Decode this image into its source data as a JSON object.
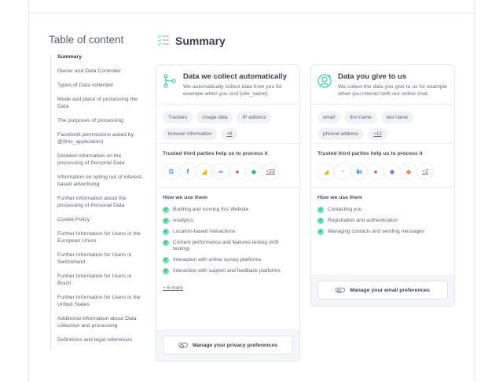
{
  "toc": {
    "title": "Table of content",
    "items": [
      "Summary",
      "Owner and Data Controller",
      "Types of Data collected",
      "Mode and place of processing the Data",
      "The purposes of processing",
      "Facebook permissions asked by @{this_application}",
      "Detailed information on the processing of Personal Data",
      "Information on opting out of interest-based advertising",
      "Further information about the processing of Personal Data",
      "Cookie Policy",
      "Further Information for Users in the European Union",
      "Further Information for Users in Switzerland",
      "Further Information for Users in Brazil",
      "Further Information for Users in the United States",
      "Additional information about Data collection and processing",
      "Definitions and legal references"
    ]
  },
  "summary": {
    "title": "Summary"
  },
  "cards": [
    {
      "title": "Data we collect automatically",
      "desc": "We automatically collect data from you for example when you visit [site_name].",
      "chips": [
        "Trackers",
        "Usage data",
        "IP address",
        "browser information"
      ],
      "chips_more": "+8",
      "parties_title": "Trusted third parties help us to process it",
      "logos": [
        "google-icon",
        "facebook-icon",
        "google-ads-icon",
        "meta-icon",
        "google-maps-icon",
        "evernote-icon"
      ],
      "logos_more": "+23",
      "uses_title": "How we use them",
      "uses": [
        "Building and running this Website",
        "Analytics",
        "Location-based interactions",
        "Content performance and features testing (A/B testing)",
        "Interaction with online survey platforms",
        "Interaction with support and feedback platforms"
      ],
      "uses_more": "+ 6 more",
      "button": "Manage your privacy preferences"
    },
    {
      "title": "Data you give to us",
      "desc": "We collect the data you give to us for example when you interact with our online chat.",
      "chips": [
        "email",
        "first name",
        "last name",
        "phisical address"
      ],
      "chips_more": "+12",
      "parties_title": "Trusted third parties help us to process it",
      "logos": [
        "google-ads-icon",
        "loader-icon",
        "linkedin-icon",
        "google-maps-icon",
        "mailchimp-icon",
        "hubspot-icon"
      ],
      "logos_more": "+2",
      "uses_title": "How we use them",
      "uses": [
        "Contacting you",
        "Registration and authentication",
        "Managing contacts and sending messages"
      ],
      "button": "Manage your email preferences"
    }
  ],
  "colors": {
    "accent": "#3ecf9a",
    "check": "#6ee0b5"
  }
}
